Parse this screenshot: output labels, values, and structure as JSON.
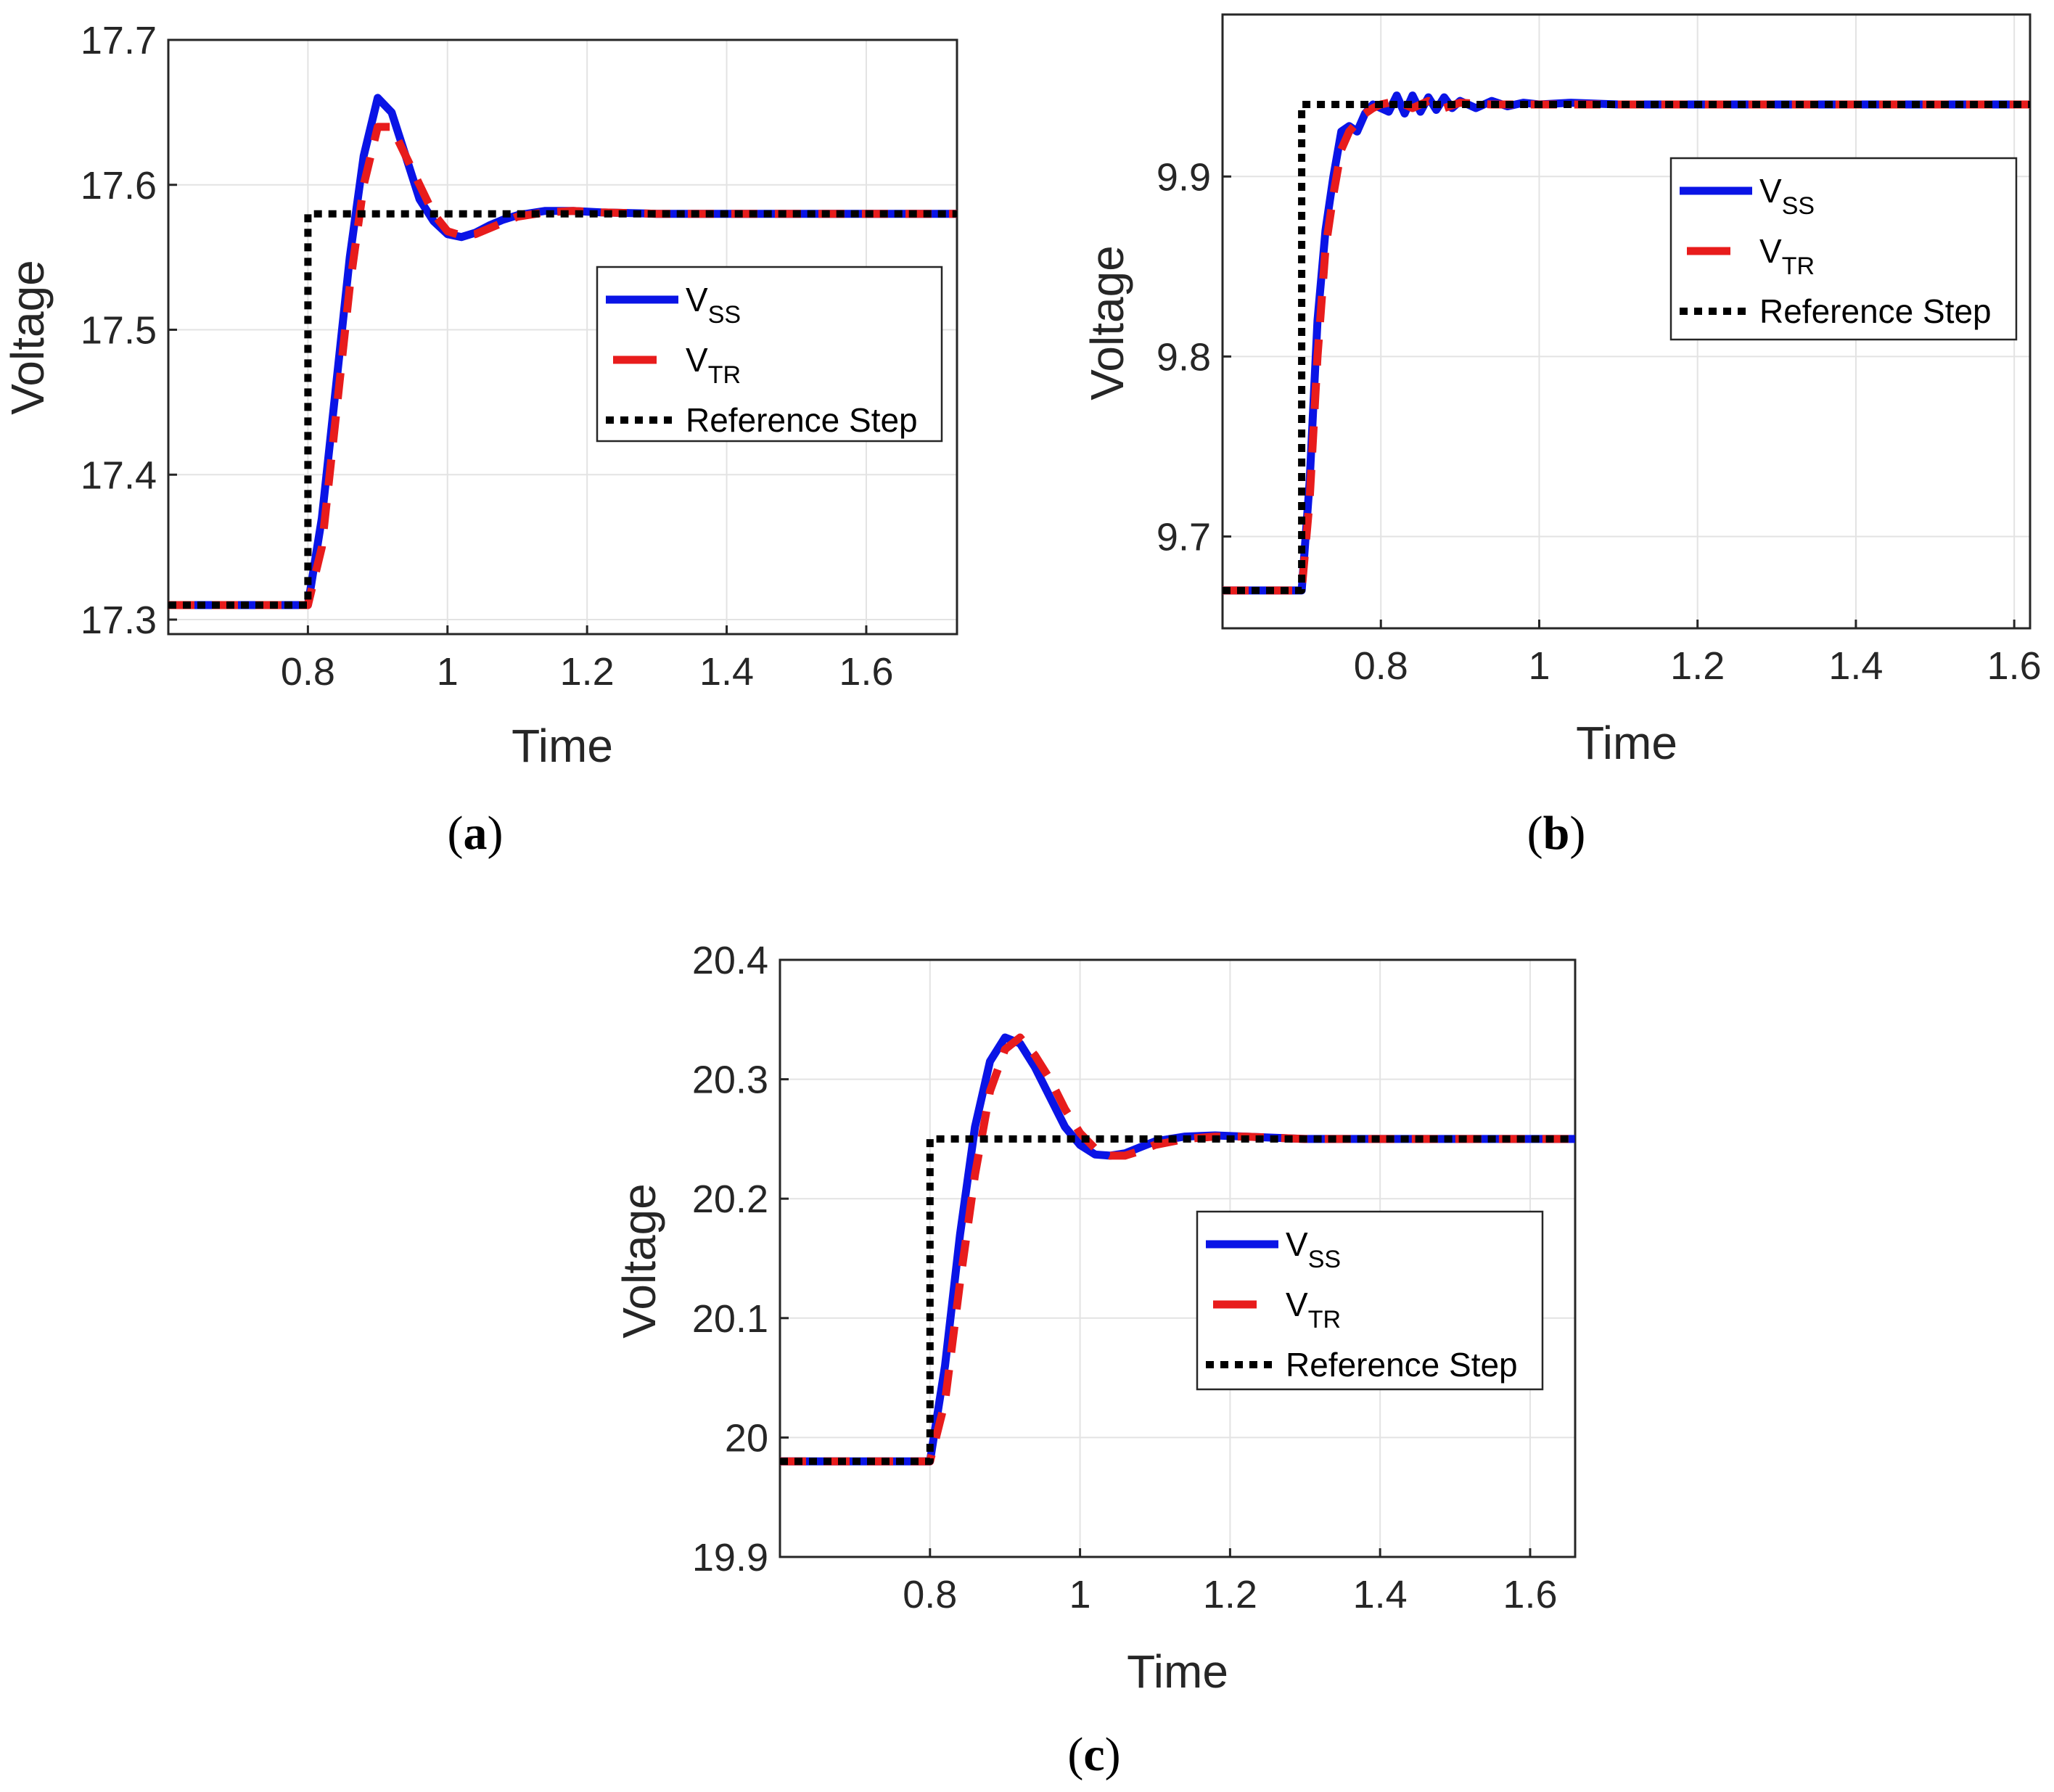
{
  "figure": {
    "captions": [
      "(a)",
      "(b)",
      "(c)"
    ]
  },
  "colors": {
    "vss": "#0a14e6",
    "vtr": "#e81c1c",
    "reference": "#000000",
    "grid": "#e3e3e3",
    "axes": "#262626"
  },
  "chart_data": [
    {
      "id": "a",
      "type": "line",
      "caption_letter": "a",
      "xlabel": "Time",
      "ylabel": "Voltage",
      "xlim": [
        0.6,
        1.73
      ],
      "ylim": [
        17.29,
        17.7
      ],
      "xticks": [
        0.8,
        1.0,
        1.2,
        1.4,
        1.6
      ],
      "xtick_labels": [
        "0.8",
        "1",
        "1.2",
        "1.4",
        "1.6"
      ],
      "yticks": [
        17.3,
        17.4,
        17.5,
        17.6,
        17.7
      ],
      "ytick_labels": [
        "17.3",
        "17.4",
        "17.5",
        "17.6",
        "17.7"
      ],
      "grid": true,
      "legend_position": "center-right",
      "legend": [
        {
          "series": "vss",
          "base": "V",
          "sub": "SS"
        },
        {
          "series": "vtr",
          "base": "V",
          "sub": "TR"
        },
        {
          "series": "reference",
          "text": "Reference Step"
        }
      ],
      "series": [
        {
          "name": "V_SS",
          "x": [
            0.6,
            0.8,
            0.82,
            0.84,
            0.86,
            0.88,
            0.9,
            0.92,
            0.94,
            0.96,
            0.98,
            1.0,
            1.02,
            1.04,
            1.06,
            1.08,
            1.1,
            1.14,
            1.18,
            1.22,
            1.3,
            1.4,
            1.73
          ],
          "y": [
            17.31,
            17.31,
            17.37,
            17.46,
            17.55,
            17.62,
            17.66,
            17.65,
            17.62,
            17.59,
            17.575,
            17.566,
            17.564,
            17.567,
            17.572,
            17.576,
            17.579,
            17.582,
            17.582,
            17.581,
            17.58,
            17.58,
            17.58
          ]
        },
        {
          "name": "V_TR",
          "x": [
            0.6,
            0.8,
            0.82,
            0.84,
            0.86,
            0.88,
            0.9,
            0.92,
            0.94,
            0.96,
            0.98,
            1.0,
            1.02,
            1.04,
            1.06,
            1.08,
            1.1,
            1.14,
            1.18,
            1.22,
            1.3,
            1.4,
            1.73
          ],
          "y": [
            17.31,
            17.31,
            17.35,
            17.44,
            17.53,
            17.6,
            17.64,
            17.64,
            17.62,
            17.6,
            17.58,
            17.568,
            17.565,
            17.566,
            17.57,
            17.574,
            17.578,
            17.581,
            17.582,
            17.581,
            17.58,
            17.58,
            17.58
          ]
        },
        {
          "name": "Reference Step",
          "x": [
            0.6,
            0.8,
            0.8,
            1.73
          ],
          "y": [
            17.31,
            17.31,
            17.58,
            17.58
          ]
        }
      ]
    },
    {
      "id": "b",
      "type": "line",
      "caption_letter": "b",
      "xlabel": "Time",
      "ylabel": "Voltage",
      "xlim": [
        0.6,
        1.62
      ],
      "ylim": [
        9.649,
        9.99
      ],
      "xticks": [
        0.8,
        1.0,
        1.2,
        1.4,
        1.6
      ],
      "xtick_labels": [
        "0.8",
        "1",
        "1.2",
        "1.4",
        "1.6"
      ],
      "yticks": [
        9.7,
        9.8,
        9.9
      ],
      "ytick_labels": [
        "9.7",
        "9.8",
        "9.9"
      ],
      "grid": true,
      "legend_position": "upper-right",
      "legend": [
        {
          "series": "vss",
          "base": "V",
          "sub": "SS"
        },
        {
          "series": "vtr",
          "base": "V",
          "sub": "TR"
        },
        {
          "series": "reference",
          "text": "Reference Step"
        }
      ],
      "series": [
        {
          "name": "V_SS",
          "x": [
            0.6,
            0.7,
            0.71,
            0.72,
            0.73,
            0.74,
            0.75,
            0.76,
            0.77,
            0.78,
            0.79,
            0.8,
            0.81,
            0.82,
            0.83,
            0.84,
            0.85,
            0.86,
            0.87,
            0.88,
            0.89,
            0.9,
            0.92,
            0.94,
            0.96,
            0.98,
            1.0,
            1.04,
            1.1,
            1.2,
            1.62
          ],
          "y": [
            9.67,
            9.67,
            9.73,
            9.82,
            9.87,
            9.9,
            9.925,
            9.928,
            9.925,
            9.935,
            9.94,
            9.938,
            9.936,
            9.945,
            9.935,
            9.945,
            9.936,
            9.944,
            9.937,
            9.944,
            9.938,
            9.942,
            9.938,
            9.942,
            9.939,
            9.941,
            9.94,
            9.941,
            9.94,
            9.94,
            9.94
          ]
        },
        {
          "name": "V_TR",
          "x": [
            0.6,
            0.7,
            0.71,
            0.72,
            0.73,
            0.74,
            0.75,
            0.76,
            0.77,
            0.78,
            0.79,
            0.8,
            0.82,
            0.84,
            0.86,
            0.88,
            0.9,
            0.94,
            1.0,
            1.1,
            1.2,
            1.62
          ],
          "y": [
            9.67,
            9.67,
            9.72,
            9.8,
            9.86,
            9.89,
            9.915,
            9.925,
            9.93,
            9.935,
            9.938,
            9.94,
            9.942,
            9.938,
            9.942,
            9.938,
            9.941,
            9.94,
            9.94,
            9.94,
            9.94,
            9.94
          ]
        },
        {
          "name": "Reference Step",
          "x": [
            0.6,
            0.7,
            0.7,
            1.62
          ],
          "y": [
            9.67,
            9.67,
            9.94,
            9.94
          ]
        }
      ]
    },
    {
      "id": "c",
      "type": "line",
      "caption_letter": "c",
      "xlabel": "Time",
      "ylabel": "Voltage",
      "xlim": [
        0.6,
        1.66
      ],
      "ylim": [
        19.9,
        20.4
      ],
      "xticks": [
        0.8,
        1.0,
        1.2,
        1.4,
        1.6
      ],
      "xtick_labels": [
        "0.8",
        "1",
        "1.2",
        "1.4",
        "1.6"
      ],
      "yticks": [
        19.9,
        20.0,
        20.1,
        20.2,
        20.3,
        20.4
      ],
      "ytick_labels": [
        "19.9",
        "20",
        "20.1",
        "20.2",
        "20.3",
        "20.4"
      ],
      "grid": true,
      "legend_position": "center-right",
      "legend": [
        {
          "series": "vss",
          "base": "V",
          "sub": "SS"
        },
        {
          "series": "vtr",
          "base": "V",
          "sub": "TR"
        },
        {
          "series": "reference",
          "text": "Reference Step"
        }
      ],
      "series": [
        {
          "name": "V_SS",
          "x": [
            0.6,
            0.8,
            0.82,
            0.84,
            0.86,
            0.88,
            0.9,
            0.92,
            0.94,
            0.96,
            0.98,
            1.0,
            1.02,
            1.04,
            1.06,
            1.08,
            1.1,
            1.14,
            1.18,
            1.22,
            1.3,
            1.4,
            1.66
          ],
          "y": [
            19.98,
            19.98,
            20.06,
            20.17,
            20.26,
            20.315,
            20.335,
            20.33,
            20.31,
            20.285,
            20.26,
            20.245,
            20.237,
            20.236,
            20.238,
            20.243,
            20.248,
            20.252,
            20.253,
            20.252,
            20.25,
            20.25,
            20.25
          ]
        },
        {
          "name": "V_TR",
          "x": [
            0.6,
            0.8,
            0.82,
            0.84,
            0.86,
            0.88,
            0.9,
            0.92,
            0.94,
            0.96,
            0.98,
            1.0,
            1.02,
            1.04,
            1.06,
            1.08,
            1.1,
            1.14,
            1.18,
            1.22,
            1.3,
            1.4,
            1.66
          ],
          "y": [
            19.98,
            19.98,
            20.03,
            20.13,
            20.22,
            20.29,
            20.325,
            20.335,
            20.32,
            20.3,
            20.275,
            20.255,
            20.242,
            20.236,
            20.236,
            20.24,
            20.245,
            20.25,
            20.252,
            20.252,
            20.25,
            20.25,
            20.25
          ]
        },
        {
          "name": "Reference Step",
          "x": [
            0.6,
            0.8,
            0.8,
            1.66
          ],
          "y": [
            19.98,
            19.98,
            20.25,
            20.25
          ]
        }
      ]
    }
  ]
}
